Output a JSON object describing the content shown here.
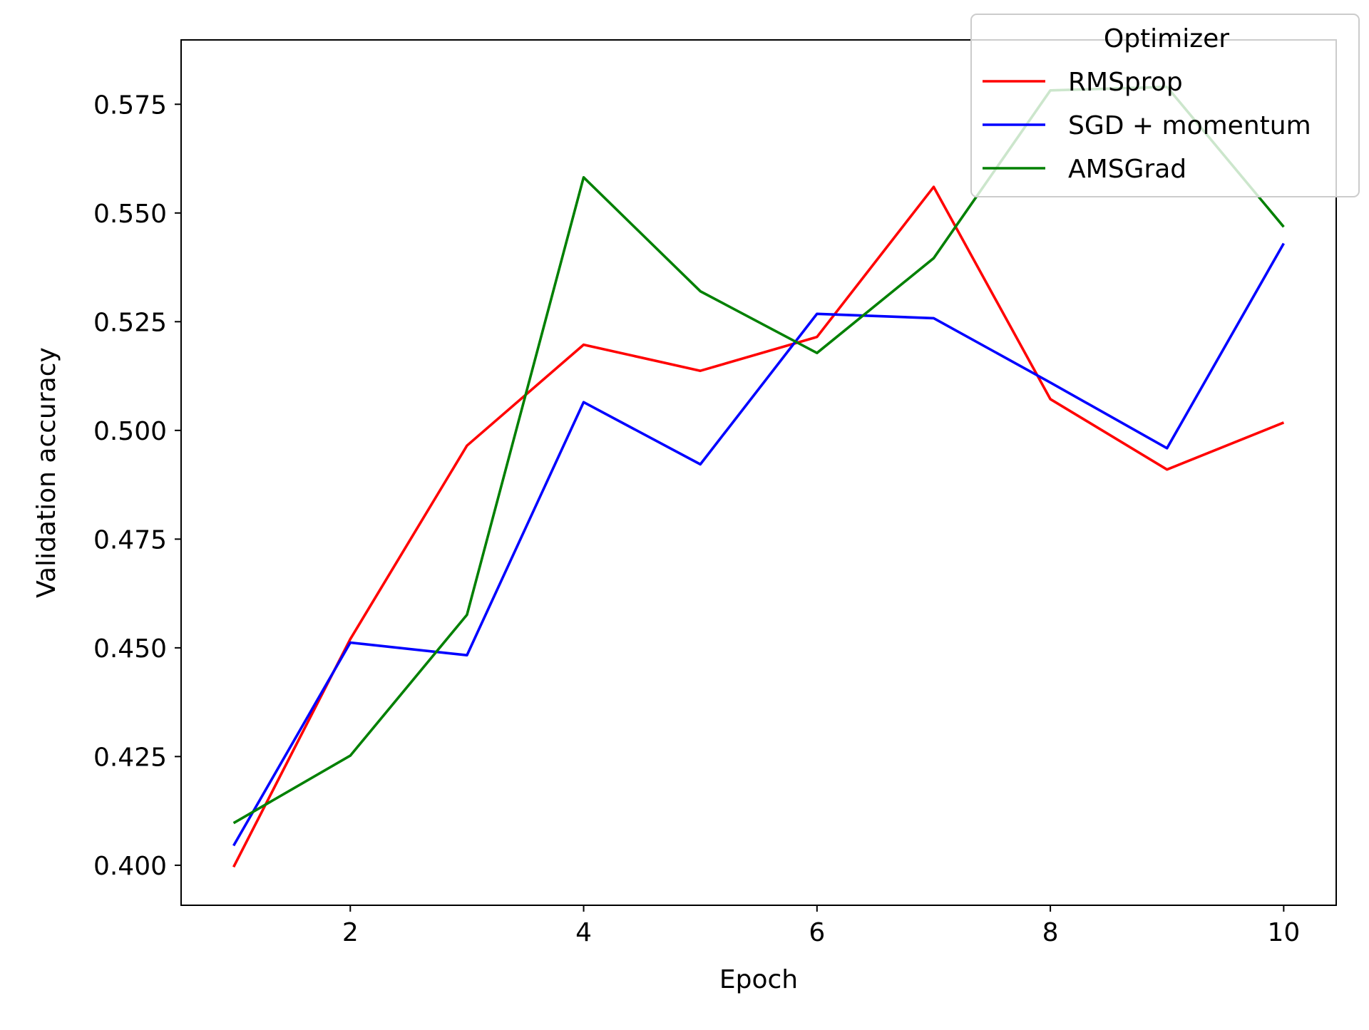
{
  "chart_data": {
    "type": "line",
    "title": "",
    "xlabel": "Epoch",
    "ylabel": "Validation accuracy",
    "x": [
      1,
      2,
      3,
      4,
      5,
      6,
      7,
      8,
      9,
      10
    ],
    "xlim": [
      0.55,
      10.45
    ],
    "ylim": [
      0.3908,
      0.5898
    ],
    "xticks": [
      2,
      4,
      6,
      8,
      10
    ],
    "xtick_labels": [
      "2",
      "4",
      "6",
      "8",
      "10"
    ],
    "yticks": [
      0.4,
      0.425,
      0.45,
      0.475,
      0.5,
      0.525,
      0.55,
      0.575
    ],
    "ytick_labels": [
      "0.400",
      "0.425",
      "0.450",
      "0.475",
      "0.500",
      "0.525",
      "0.550",
      "0.575"
    ],
    "grid": false,
    "legend": {
      "title": "Optimizer",
      "position": "top-right"
    },
    "series": [
      {
        "name": "RMSprop",
        "color": "#ff0000",
        "values": [
          0.3996,
          0.452,
          0.4965,
          0.5197,
          0.5137,
          0.5215,
          0.556,
          0.5072,
          0.491,
          0.5018
        ]
      },
      {
        "name": "SGD + momentum",
        "color": "#0000ff",
        "values": [
          0.4045,
          0.4512,
          0.4483,
          0.5065,
          0.4922,
          0.5268,
          0.5258,
          0.511,
          0.4959,
          0.543
        ]
      },
      {
        "name": "AMSGrad",
        "color": "#008000",
        "values": [
          0.4097,
          0.4252,
          0.4576,
          0.5582,
          0.532,
          0.5178,
          0.5396,
          0.5782,
          0.579,
          0.5468
        ]
      }
    ]
  }
}
